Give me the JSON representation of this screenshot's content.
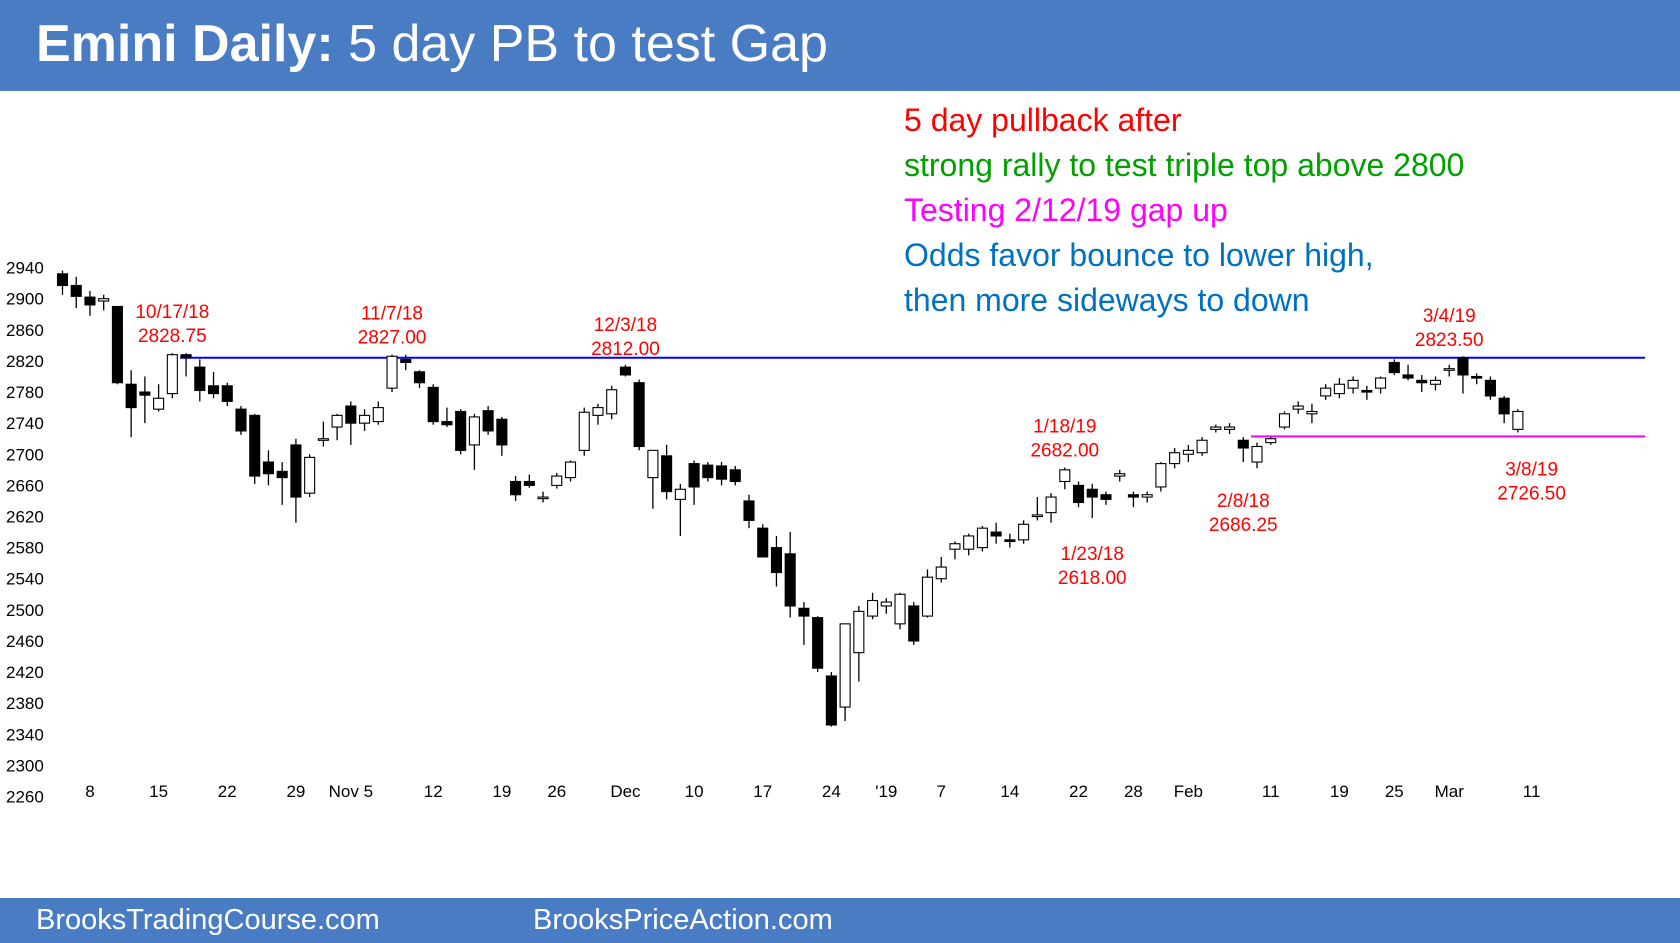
{
  "header": {
    "title_bold": "Emini Daily:",
    "title_rest": " 5 day PB to test Gap",
    "background": "#4a7cc4"
  },
  "notes": [
    {
      "text": "5 day pullback after",
      "color": "#ff0000"
    },
    {
      "text": "strong rally to test triple top above 2800",
      "color": "#00a000"
    },
    {
      "text": "Testing 2/12/19 gap up",
      "color": "#ff00ff"
    },
    {
      "text": "Odds favor bounce to lower high,",
      "color": "#0070c0"
    },
    {
      "text": "then more sideways to down",
      "color": "#0070c0"
    }
  ],
  "footer": {
    "left": "BrooksTradingCourse.com",
    "right": "BrooksPriceAction.com"
  },
  "chart_data": {
    "type": "candlestick",
    "title": "Emini Daily: 5 day PB to test Gap",
    "ylim": [
      2230,
      2960
    ],
    "yticks": [
      2940,
      2900,
      2860,
      2820,
      2780,
      2740,
      2700,
      2660,
      2620,
      2580,
      2540,
      2500,
      2460,
      2420,
      2380,
      2340,
      2300,
      2260
    ],
    "xticks": [
      {
        "label": "8",
        "bar": 2
      },
      {
        "label": "15",
        "bar": 7
      },
      {
        "label": "22",
        "bar": 12
      },
      {
        "label": "29",
        "bar": 17
      },
      {
        "label": "Nov 5",
        "bar": 21
      },
      {
        "label": "12",
        "bar": 27
      },
      {
        "label": "19",
        "bar": 32
      },
      {
        "label": "26",
        "bar": 36
      },
      {
        "label": "Dec",
        "bar": 41
      },
      {
        "label": "10",
        "bar": 46
      },
      {
        "label": "17",
        "bar": 51
      },
      {
        "label": "24",
        "bar": 56
      },
      {
        "label": "'19",
        "bar": 60
      },
      {
        "label": "7",
        "bar": 64
      },
      {
        "label": "14",
        "bar": 69
      },
      {
        "label": "22",
        "bar": 74
      },
      {
        "label": "28",
        "bar": 78
      },
      {
        "label": "Feb",
        "bar": 82
      },
      {
        "label": "11",
        "bar": 88
      },
      {
        "label": "19",
        "bar": 93
      },
      {
        "label": "25",
        "bar": 97
      },
      {
        "label": "Mar",
        "bar": 101
      },
      {
        "label": "11",
        "bar": 107
      }
    ],
    "ohlc": [
      [
        2932,
        2936,
        2905,
        2917
      ],
      [
        2917,
        2928,
        2888,
        2903
      ],
      [
        2902,
        2910,
        2878,
        2892
      ],
      [
        2897,
        2905,
        2885,
        2900
      ],
      [
        2890,
        2890,
        2790,
        2792
      ],
      [
        2790,
        2808,
        2722,
        2760
      ],
      [
        2780,
        2800,
        2740,
        2776
      ],
      [
        2758,
        2790,
        2755,
        2772
      ],
      [
        2778,
        2830,
        2772,
        2828
      ],
      [
        2828,
        2830,
        2800,
        2825
      ],
      [
        2812,
        2822,
        2768,
        2782
      ],
      [
        2788,
        2806,
        2772,
        2778
      ],
      [
        2788,
        2792,
        2762,
        2768
      ],
      [
        2758,
        2762,
        2725,
        2730
      ],
      [
        2750,
        2752,
        2662,
        2672
      ],
      [
        2690,
        2705,
        2660,
        2675
      ],
      [
        2678,
        2690,
        2635,
        2670
      ],
      [
        2712,
        2720,
        2612,
        2645
      ],
      [
        2650,
        2700,
        2645,
        2696
      ],
      [
        2718,
        2742,
        2710,
        2720
      ],
      [
        2735,
        2752,
        2718,
        2750
      ],
      [
        2762,
        2768,
        2712,
        2740
      ],
      [
        2740,
        2758,
        2730,
        2750
      ],
      [
        2742,
        2768,
        2738,
        2760
      ],
      [
        2785,
        2828,
        2780,
        2826
      ],
      [
        2822,
        2828,
        2808,
        2818
      ],
      [
        2806,
        2808,
        2785,
        2792
      ],
      [
        2786,
        2790,
        2738,
        2742
      ],
      [
        2742,
        2760,
        2735,
        2738
      ],
      [
        2755,
        2758,
        2700,
        2705
      ],
      [
        2712,
        2752,
        2680,
        2748
      ],
      [
        2756,
        2762,
        2725,
        2730
      ],
      [
        2745,
        2748,
        2698,
        2712
      ],
      [
        2665,
        2672,
        2640,
        2648
      ],
      [
        2665,
        2674,
        2657,
        2660
      ],
      [
        2645,
        2652,
        2638,
        2645
      ],
      [
        2660,
        2676,
        2656,
        2672
      ],
      [
        2670,
        2692,
        2665,
        2690
      ],
      [
        2705,
        2760,
        2698,
        2754
      ],
      [
        2750,
        2765,
        2738,
        2760
      ],
      [
        2752,
        2788,
        2745,
        2783
      ],
      [
        2812,
        2815,
        2800,
        2802
      ],
      [
        2792,
        2796,
        2705,
        2710
      ],
      [
        2670,
        2702,
        2630,
        2705
      ],
      [
        2698,
        2712,
        2642,
        2652
      ],
      [
        2642,
        2662,
        2595,
        2655
      ],
      [
        2688,
        2692,
        2635,
        2658
      ],
      [
        2686,
        2690,
        2665,
        2670
      ],
      [
        2685,
        2690,
        2660,
        2668
      ],
      [
        2680,
        2685,
        2660,
        2665
      ],
      [
        2640,
        2648,
        2605,
        2615
      ],
      [
        2605,
        2610,
        2570,
        2568
      ],
      [
        2580,
        2595,
        2530,
        2548
      ],
      [
        2572,
        2600,
        2490,
        2505
      ],
      [
        2502,
        2510,
        2455,
        2492
      ],
      [
        2490,
        2492,
        2420,
        2425
      ],
      [
        2415,
        2420,
        2350,
        2352
      ],
      [
        2375,
        2480,
        2357,
        2482
      ],
      [
        2445,
        2505,
        2408,
        2498
      ],
      [
        2492,
        2522,
        2488,
        2512
      ],
      [
        2505,
        2515,
        2495,
        2510
      ],
      [
        2482,
        2522,
        2475,
        2520
      ],
      [
        2505,
        2510,
        2455,
        2460
      ],
      [
        2492,
        2552,
        2490,
        2542
      ],
      [
        2540,
        2568,
        2535,
        2555
      ],
      [
        2578,
        2588,
        2565,
        2585
      ],
      [
        2578,
        2598,
        2570,
        2595
      ],
      [
        2580,
        2608,
        2575,
        2605
      ],
      [
        2600,
        2612,
        2585,
        2595
      ],
      [
        2590,
        2598,
        2580,
        2588
      ],
      [
        2590,
        2615,
        2585,
        2610
      ],
      [
        2620,
        2645,
        2615,
        2622
      ],
      [
        2625,
        2650,
        2612,
        2645
      ],
      [
        2665,
        2683,
        2655,
        2680
      ],
      [
        2660,
        2665,
        2632,
        2638
      ],
      [
        2655,
        2662,
        2618,
        2645
      ],
      [
        2648,
        2652,
        2635,
        2642
      ],
      [
        2672,
        2680,
        2665,
        2675
      ],
      [
        2648,
        2652,
        2632,
        2645
      ],
      [
        2645,
        2652,
        2638,
        2648
      ],
      [
        2658,
        2690,
        2652,
        2688
      ],
      [
        2688,
        2708,
        2682,
        2702
      ],
      [
        2700,
        2712,
        2690,
        2705
      ],
      [
        2702,
        2722,
        2698,
        2718
      ],
      [
        2732,
        2738,
        2728,
        2735
      ],
      [
        2732,
        2740,
        2726,
        2735
      ],
      [
        2718,
        2722,
        2690,
        2708
      ],
      [
        2690,
        2715,
        2682,
        2710
      ],
      [
        2715,
        2722,
        2712,
        2720
      ],
      [
        2735,
        2755,
        2732,
        2752
      ],
      [
        2758,
        2768,
        2752,
        2762
      ],
      [
        2752,
        2765,
        2740,
        2755
      ],
      [
        2775,
        2790,
        2770,
        2785
      ],
      [
        2778,
        2798,
        2772,
        2790
      ],
      [
        2785,
        2800,
        2778,
        2795
      ],
      [
        2782,
        2788,
        2770,
        2780
      ],
      [
        2785,
        2800,
        2778,
        2798
      ],
      [
        2818,
        2822,
        2802,
        2805
      ],
      [
        2802,
        2815,
        2795,
        2798
      ],
      [
        2795,
        2802,
        2780,
        2792
      ],
      [
        2790,
        2800,
        2782,
        2795
      ],
      [
        2808,
        2815,
        2800,
        2810
      ],
      [
        2824,
        2826,
        2778,
        2802
      ],
      [
        2800,
        2804,
        2790,
        2798
      ],
      [
        2795,
        2800,
        2770,
        2775
      ],
      [
        2772,
        2775,
        2740,
        2752
      ],
      [
        2732,
        2758,
        2728,
        2755
      ]
    ],
    "lines": [
      {
        "name": "resistance",
        "y": 2824,
        "from_bar": 9,
        "color": "#0000ff"
      },
      {
        "name": "gap",
        "y": 2723,
        "from_bar": 87,
        "color": "#ff00ff"
      }
    ],
    "annotations": [
      {
        "date": "10/17/18",
        "value": "2828.75",
        "bar": 8,
        "y": 2828.75,
        "pos": "above"
      },
      {
        "date": "11/7/18",
        "value": "2827.00",
        "bar": 24,
        "y": 2827,
        "pos": "above"
      },
      {
        "date": "12/3/18",
        "value": "2812.00",
        "bar": 41,
        "y": 2812,
        "pos": "above"
      },
      {
        "date": "1/18/19",
        "value": "2682.00",
        "bar": 73,
        "y": 2682,
        "pos": "above"
      },
      {
        "date": "1/23/18",
        "value": "2618.00",
        "bar": 75,
        "y": 2618,
        "pos": "below"
      },
      {
        "date": "2/8/18",
        "value": "2686.25",
        "bar": 86,
        "y": 2686.25,
        "pos": "below"
      },
      {
        "date": "3/4/19",
        "value": "2823.50",
        "bar": 101,
        "y": 2823.5,
        "pos": "above"
      },
      {
        "date": "3/8/19",
        "value": "2726.50",
        "bar": 107,
        "y": 2726.5,
        "pos": "below"
      }
    ],
    "annotation_color": "#ff0000"
  }
}
